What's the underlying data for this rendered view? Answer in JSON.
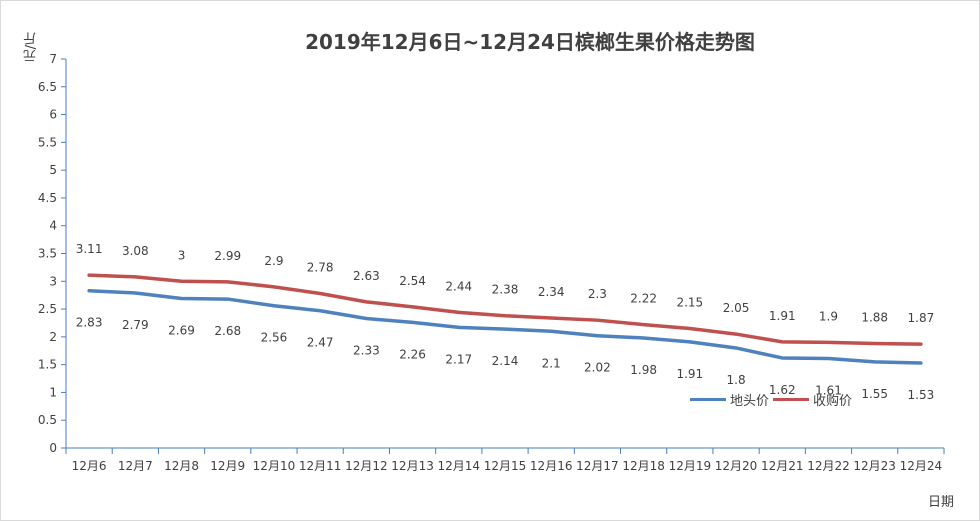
{
  "chart_data": {
    "type": "line",
    "title": "2019年12月6日~12月24日槟榔生果价格走势图",
    "xlabel": "日期",
    "ylabel": "元/斤",
    "ylim": [
      0,
      7
    ],
    "yticks": [
      "0",
      "0.5",
      "1",
      "1.5",
      "2",
      "2.5",
      "3",
      "3.5",
      "4",
      "4.5",
      "5",
      "5.5",
      "6",
      "6.5",
      "7"
    ],
    "categories": [
      "12月6",
      "12月7",
      "12月8",
      "12月9",
      "12月10",
      "12月11",
      "12月12",
      "12月13",
      "12月14",
      "12月15",
      "12月16",
      "12月17",
      "12月18",
      "12月19",
      "12月20",
      "12月21",
      "12月22",
      "12月23",
      "12月24"
    ],
    "series": [
      {
        "name": "地头价",
        "color": "#4f81bd",
        "values": [
          2.83,
          2.79,
          2.69,
          2.68,
          2.56,
          2.47,
          2.33,
          2.26,
          2.17,
          2.14,
          2.1,
          2.02,
          1.98,
          1.91,
          1.8,
          1.62,
          1.61,
          1.55,
          1.53
        ]
      },
      {
        "name": "收购价",
        "color": "#c0504d",
        "values": [
          3.11,
          3.08,
          3,
          2.99,
          2.9,
          2.78,
          2.63,
          2.54,
          2.44,
          2.38,
          2.34,
          2.3,
          2.22,
          2.15,
          2.05,
          1.91,
          1.9,
          1.88,
          1.87
        ]
      }
    ],
    "grid": false,
    "legend_position": "lower-right"
  }
}
